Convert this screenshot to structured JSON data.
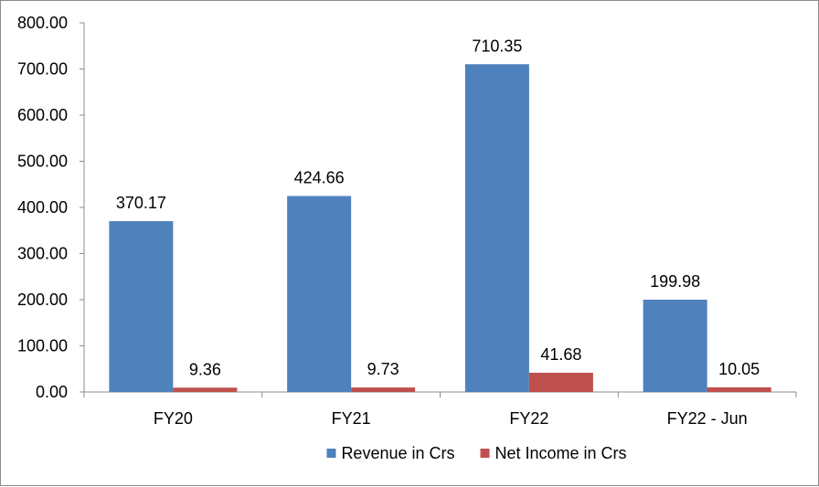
{
  "chart_data": {
    "type": "bar",
    "title": "",
    "xlabel": "",
    "ylabel": "",
    "categories": [
      "FY20",
      "FY21",
      "FY22",
      "FY22 - Jun"
    ],
    "series": [
      {
        "name": "Revenue in Crs",
        "color": "#4f81bd",
        "values": [
          370.17,
          424.66,
          710.35,
          199.98
        ],
        "labels": [
          "370.17",
          "424.66",
          "710.35",
          "199.98"
        ]
      },
      {
        "name": "Net Income in Crs",
        "color": "#c0504d",
        "values": [
          9.36,
          9.73,
          41.68,
          10.05
        ],
        "labels": [
          "9.36",
          "9.73",
          "41.68",
          "10.05"
        ]
      }
    ],
    "ylim": [
      0,
      800
    ],
    "yticks": [
      0,
      100,
      200,
      300,
      400,
      500,
      600,
      700,
      800
    ],
    "ytick_labels": [
      "0.00",
      "100.00",
      "200.00",
      "300.00",
      "400.00",
      "500.00",
      "600.00",
      "700.00",
      "800.00"
    ],
    "legend": "bottom",
    "grid": false
  }
}
